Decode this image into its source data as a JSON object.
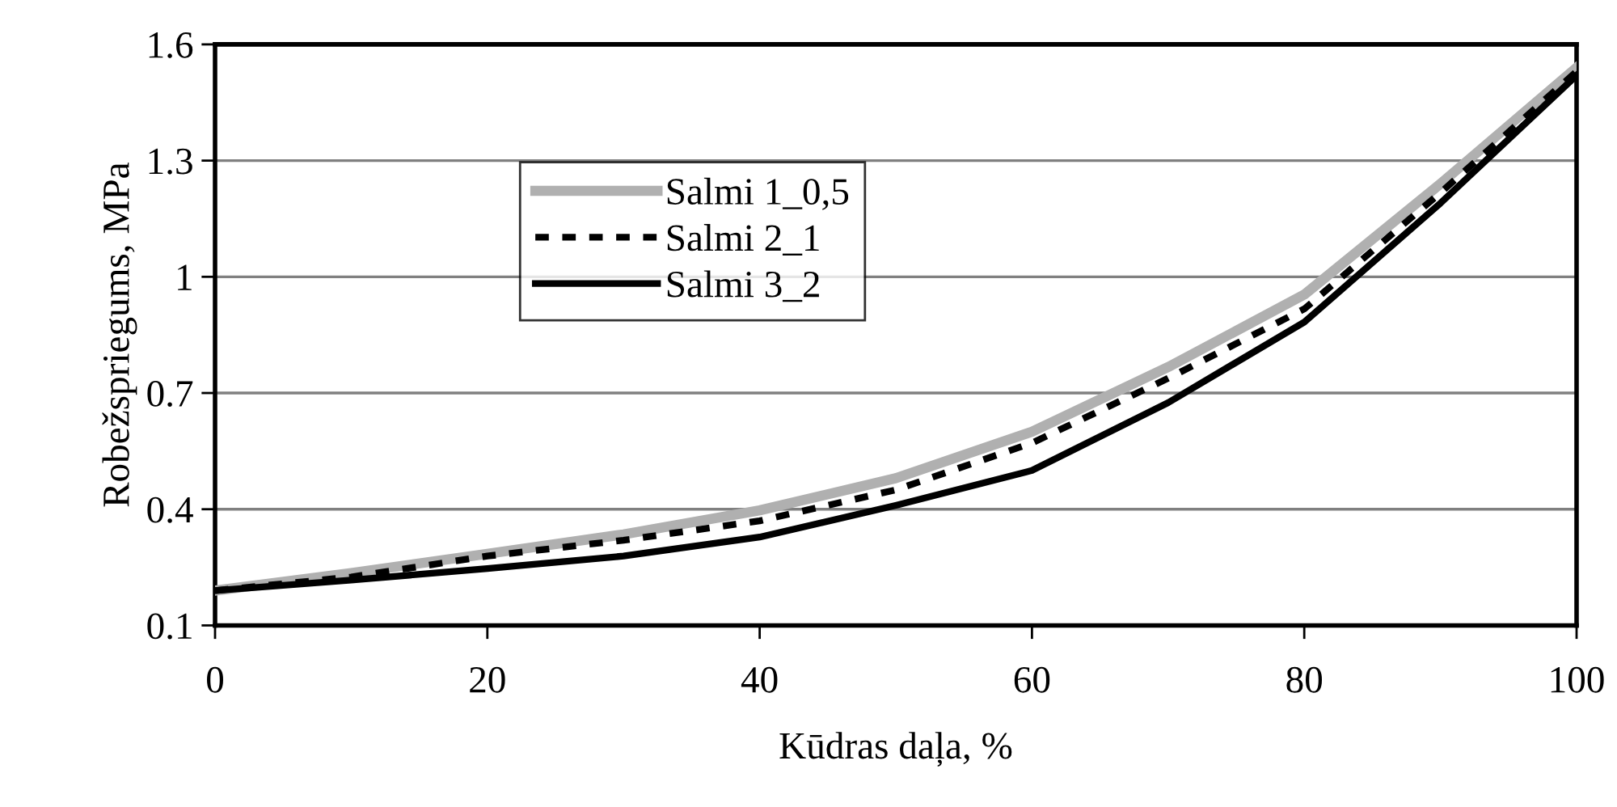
{
  "chart_data": {
    "type": "line",
    "xlabel": "Kūdras daļa, %",
    "ylabel": "Robežspriegums, MPa",
    "x": [
      0,
      10,
      20,
      30,
      40,
      50,
      60,
      70,
      80,
      90,
      100
    ],
    "series": [
      {
        "name": "Salmi 1_0,5",
        "color": "#b0b0b0",
        "line_style": "solid",
        "values": [
          0.19,
          0.235,
          0.285,
          0.335,
          0.397,
          0.48,
          0.6,
          0.767,
          0.954,
          1.24,
          1.54
        ]
      },
      {
        "name": "Salmi 2_1",
        "color": "#000000",
        "line_style": "dashed",
        "values": [
          0.19,
          0.225,
          0.279,
          0.32,
          0.37,
          0.45,
          0.571,
          0.738,
          0.917,
          1.217,
          1.53
        ]
      },
      {
        "name": "Salmi 3_2",
        "color": "#000000",
        "line_style": "solid",
        "values": [
          0.19,
          0.217,
          0.247,
          0.279,
          0.328,
          0.41,
          0.5,
          0.675,
          0.883,
          1.19,
          1.52
        ]
      }
    ],
    "xlim": [
      0,
      100
    ],
    "xticks": [
      0,
      20,
      40,
      60,
      80,
      100
    ],
    "ylim": [
      0.1,
      1.6
    ],
    "yticks": [
      0.1,
      0.4,
      0.7,
      1,
      1.3,
      1.6
    ],
    "grid": "y",
    "legend": "top left",
    "marker": "none"
  }
}
